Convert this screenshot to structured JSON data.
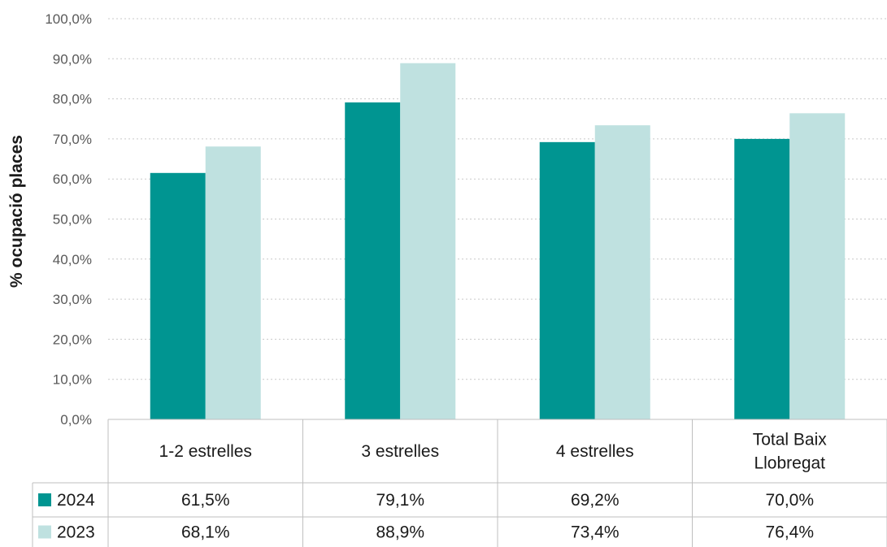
{
  "chart_data": {
    "type": "bar",
    "ylabel": "% ocupació places",
    "ylim": [
      0,
      100
    ],
    "ytick_step": 10,
    "ytick_labels": [
      "0,0%",
      "10,0%",
      "20,0%",
      "30,0%",
      "40,0%",
      "50,0%",
      "60,0%",
      "70,0%",
      "80,0%",
      "90,0%",
      "100,0%"
    ],
    "grid": true,
    "legend_placement": "data-table-left",
    "categories": [
      [
        "1-2 estrelles"
      ],
      [
        "3 estrelles"
      ],
      [
        "4 estrelles"
      ],
      [
        "Total Baix",
        "Llobregat"
      ]
    ],
    "series": [
      {
        "name": "2024",
        "color": "#009591",
        "values": [
          61.5,
          79.1,
          69.2,
          70.0
        ],
        "labels": [
          "61,5%",
          "79,1%",
          "69,2%",
          "70,0%"
        ]
      },
      {
        "name": "2023",
        "color": "#bfe1e0",
        "values": [
          68.1,
          88.9,
          73.4,
          76.4
        ],
        "labels": [
          "68,1%",
          "88,9%",
          "73,4%",
          "76,4%"
        ]
      }
    ]
  }
}
